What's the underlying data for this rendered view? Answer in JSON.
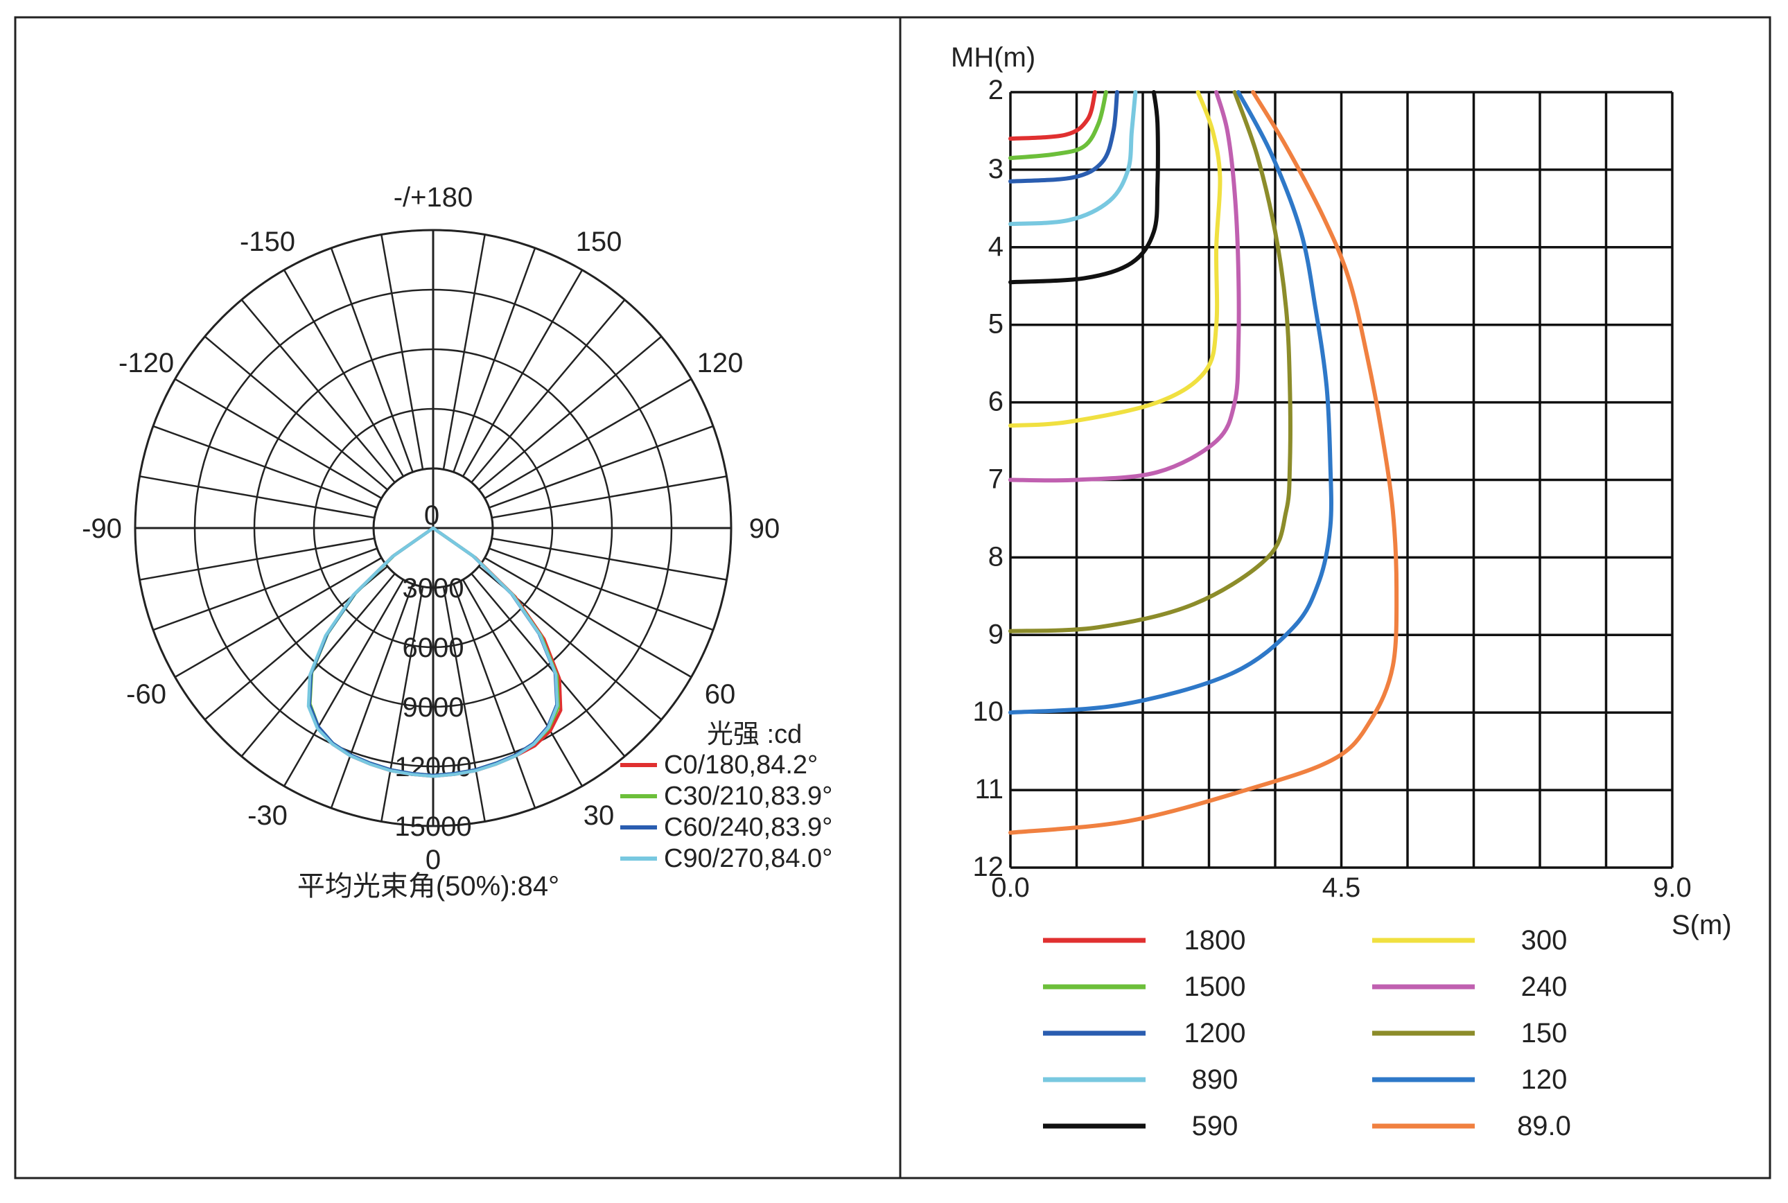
{
  "chart_data": [
    {
      "type": "polar",
      "title": "平均光束角(50%):84°",
      "unit_label": "光强 :cd",
      "angle_labels": [
        "-/+180",
        "150",
        "120",
        "90",
        "60",
        "30",
        "0",
        "-30",
        "-60",
        "-90",
        "-120",
        "-150"
      ],
      "angle_values": [
        180,
        150,
        120,
        90,
        60,
        30,
        0,
        -30,
        -60,
        -90,
        -120,
        -150
      ],
      "radial_ticks": [
        3000,
        6000,
        9000,
        12000,
        15000
      ],
      "radial_labels": [
        "3000",
        "6000",
        "9000",
        "12000",
        "15000"
      ],
      "center_label": "0",
      "r_max": 15000,
      "series": [
        {
          "name": "C0/180,84.2°",
          "color": "#e03030",
          "points": [
            [
              -60,
              0
            ],
            [
              -55,
              2500
            ],
            [
              -50,
              5200
            ],
            [
              -45,
              7600
            ],
            [
              -40,
              9600
            ],
            [
              -35,
              10900
            ],
            [
              -30,
              11600
            ],
            [
              -25,
              12000
            ],
            [
              -20,
              12200
            ],
            [
              -15,
              12300
            ],
            [
              -10,
              12400
            ],
            [
              -5,
              12450
            ],
            [
              0,
              12500
            ],
            [
              5,
              12450
            ],
            [
              10,
              12400
            ],
            [
              15,
              12300
            ],
            [
              20,
              12200
            ],
            [
              25,
              12100
            ],
            [
              30,
              11800
            ],
            [
              35,
              11200
            ],
            [
              40,
              9900
            ],
            [
              45,
              7900
            ],
            [
              50,
              5400
            ],
            [
              55,
              2600
            ],
            [
              60,
              0
            ]
          ]
        },
        {
          "name": "C30/210,83.9°",
          "color": "#6cbf3a",
          "points": [
            [
              -60,
              0
            ],
            [
              -55,
              2400
            ],
            [
              -50,
              5100
            ],
            [
              -45,
              7500
            ],
            [
              -40,
              9500
            ],
            [
              -35,
              10800
            ],
            [
              -30,
              11550
            ],
            [
              -25,
              11950
            ],
            [
              -20,
              12150
            ],
            [
              -15,
              12250
            ],
            [
              -10,
              12350
            ],
            [
              -5,
              12400
            ],
            [
              0,
              12450
            ],
            [
              5,
              12400
            ],
            [
              10,
              12350
            ],
            [
              15,
              12250
            ],
            [
              20,
              12150
            ],
            [
              25,
              12000
            ],
            [
              30,
              11650
            ],
            [
              35,
              11000
            ],
            [
              40,
              9700
            ],
            [
              45,
              7700
            ],
            [
              50,
              5250
            ],
            [
              55,
              2500
            ],
            [
              60,
              0
            ]
          ]
        },
        {
          "name": "C60/240,83.9°",
          "color": "#2a5db0",
          "points": [
            [
              -60,
              0
            ],
            [
              -55,
              2450
            ],
            [
              -50,
              5150
            ],
            [
              -45,
              7550
            ],
            [
              -40,
              9550
            ],
            [
              -35,
              10850
            ],
            [
              -30,
              11550
            ],
            [
              -25,
              11950
            ],
            [
              -20,
              12150
            ],
            [
              -15,
              12250
            ],
            [
              -10,
              12350
            ],
            [
              -5,
              12400
            ],
            [
              0,
              12450
            ],
            [
              5,
              12400
            ],
            [
              10,
              12350
            ],
            [
              15,
              12250
            ],
            [
              20,
              12150
            ],
            [
              25,
              11950
            ],
            [
              30,
              11550
            ],
            [
              35,
              10850
            ],
            [
              40,
              9550
            ],
            [
              45,
              7550
            ],
            [
              50,
              5150
            ],
            [
              55,
              2450
            ],
            [
              60,
              0
            ]
          ]
        },
        {
          "name": "C90/270,84.0°",
          "color": "#78c8e0",
          "points": [
            [
              -60,
              0
            ],
            [
              -55,
              2500
            ],
            [
              -50,
              5250
            ],
            [
              -45,
              7650
            ],
            [
              -40,
              9650
            ],
            [
              -35,
              10950
            ],
            [
              -30,
              11650
            ],
            [
              -25,
              12000
            ],
            [
              -20,
              12200
            ],
            [
              -15,
              12300
            ],
            [
              -10,
              12400
            ],
            [
              -5,
              12450
            ],
            [
              0,
              12500
            ],
            [
              5,
              12450
            ],
            [
              10,
              12400
            ],
            [
              15,
              12300
            ],
            [
              20,
              12200
            ],
            [
              25,
              12000
            ],
            [
              30,
              11600
            ],
            [
              35,
              10900
            ],
            [
              40,
              9600
            ],
            [
              45,
              7600
            ],
            [
              50,
              5200
            ],
            [
              55,
              2500
            ],
            [
              60,
              0
            ]
          ]
        }
      ]
    },
    {
      "type": "line",
      "ylabel": "MH(m)",
      "xlabel": "S(m)",
      "ylim": [
        2,
        12
      ],
      "xlim": [
        0,
        9
      ],
      "y_reversed": true,
      "yticks": [
        2,
        3,
        4,
        5,
        6,
        7,
        8,
        9,
        10,
        11,
        12
      ],
      "ytick_labels": [
        "2",
        "3",
        "4",
        "5",
        "6",
        "7",
        "8",
        "9",
        "10",
        "11",
        "12"
      ],
      "xtick_labels": [
        {
          "v": 0,
          "t": "0.0"
        },
        {
          "v": 4.5,
          "t": "4.5"
        },
        {
          "v": 9,
          "t": "9.0"
        }
      ],
      "grid": {
        "x_step": 0.9,
        "y_step": 1
      },
      "series": [
        {
          "name": "1800",
          "color": "#e03030",
          "points": [
            [
              1.15,
              2
            ],
            [
              1.05,
              2.35
            ],
            [
              0.75,
              2.55
            ],
            [
              0,
              2.6
            ]
          ]
        },
        {
          "name": "1500",
          "color": "#6cbf3a",
          "points": [
            [
              1.3,
              2
            ],
            [
              1.2,
              2.4
            ],
            [
              1.0,
              2.7
            ],
            [
              0.6,
              2.8
            ],
            [
              0,
              2.85
            ]
          ]
        },
        {
          "name": "1200",
          "color": "#2a5db0",
          "points": [
            [
              1.45,
              2
            ],
            [
              1.4,
              2.5
            ],
            [
              1.25,
              2.9
            ],
            [
              0.85,
              3.1
            ],
            [
              0,
              3.15
            ]
          ]
        },
        {
          "name": "890",
          "color": "#78c8e0",
          "points": [
            [
              1.7,
              2
            ],
            [
              1.65,
              2.5
            ],
            [
              1.6,
              3.0
            ],
            [
              1.35,
              3.4
            ],
            [
              0.8,
              3.65
            ],
            [
              0,
              3.7
            ]
          ]
        },
        {
          "name": "590",
          "color": "#111111",
          "points": [
            [
              1.95,
              2
            ],
            [
              2.0,
              2.4
            ],
            [
              2.0,
              3.2
            ],
            [
              1.95,
              3.8
            ],
            [
              1.65,
              4.2
            ],
            [
              1.0,
              4.4
            ],
            [
              0,
              4.45
            ]
          ]
        },
        {
          "name": "300",
          "color": "#f0e040",
          "points": [
            [
              2.55,
              2
            ],
            [
              2.75,
              2.5
            ],
            [
              2.85,
              3.1
            ],
            [
              2.8,
              4.0
            ],
            [
              2.8,
              5.0
            ],
            [
              2.65,
              5.6
            ],
            [
              2.0,
              6.0
            ],
            [
              0.8,
              6.25
            ],
            [
              0,
              6.3
            ]
          ]
        },
        {
          "name": "240",
          "color": "#c060b0",
          "points": [
            [
              2.8,
              2
            ],
            [
              2.95,
              2.5
            ],
            [
              3.05,
              3.3
            ],
            [
              3.1,
              4.3
            ],
            [
              3.1,
              5.3
            ],
            [
              3.05,
              6.0
            ],
            [
              2.8,
              6.5
            ],
            [
              2.0,
              6.9
            ],
            [
              0.9,
              7.0
            ],
            [
              0,
              7.0
            ]
          ]
        },
        {
          "name": "150",
          "color": "#8c8c2a",
          "points": [
            [
              3.05,
              2
            ],
            [
              3.35,
              2.8
            ],
            [
              3.6,
              3.8
            ],
            [
              3.75,
              4.8
            ],
            [
              3.8,
              5.8
            ],
            [
              3.8,
              6.8
            ],
            [
              3.75,
              7.4
            ],
            [
              3.5,
              8.0
            ],
            [
              2.5,
              8.6
            ],
            [
              1.2,
              8.9
            ],
            [
              0,
              8.95
            ]
          ]
        },
        {
          "name": "120",
          "color": "#2e78c8",
          "points": [
            [
              3.1,
              2
            ],
            [
              3.55,
              2.8
            ],
            [
              3.95,
              3.8
            ],
            [
              4.15,
              4.8
            ],
            [
              4.3,
              5.8
            ],
            [
              4.35,
              6.8
            ],
            [
              4.35,
              7.6
            ],
            [
              4.2,
              8.3
            ],
            [
              3.85,
              8.9
            ],
            [
              3.0,
              9.5
            ],
            [
              1.5,
              9.9
            ],
            [
              0,
              10.0
            ]
          ]
        },
        {
          "name": "89.0",
          "color": "#f08040",
          "points": [
            [
              3.3,
              2
            ],
            [
              3.75,
              2.7
            ],
            [
              4.25,
              3.6
            ],
            [
              4.6,
              4.4
            ],
            [
              4.85,
              5.4
            ],
            [
              5.05,
              6.4
            ],
            [
              5.2,
              7.4
            ],
            [
              5.25,
              8.4
            ],
            [
              5.2,
              9.4
            ],
            [
              4.9,
              10.1
            ],
            [
              4.4,
              10.6
            ],
            [
              3.2,
              11.0
            ],
            [
              1.6,
              11.4
            ],
            [
              0,
              11.55
            ]
          ]
        }
      ]
    }
  ]
}
